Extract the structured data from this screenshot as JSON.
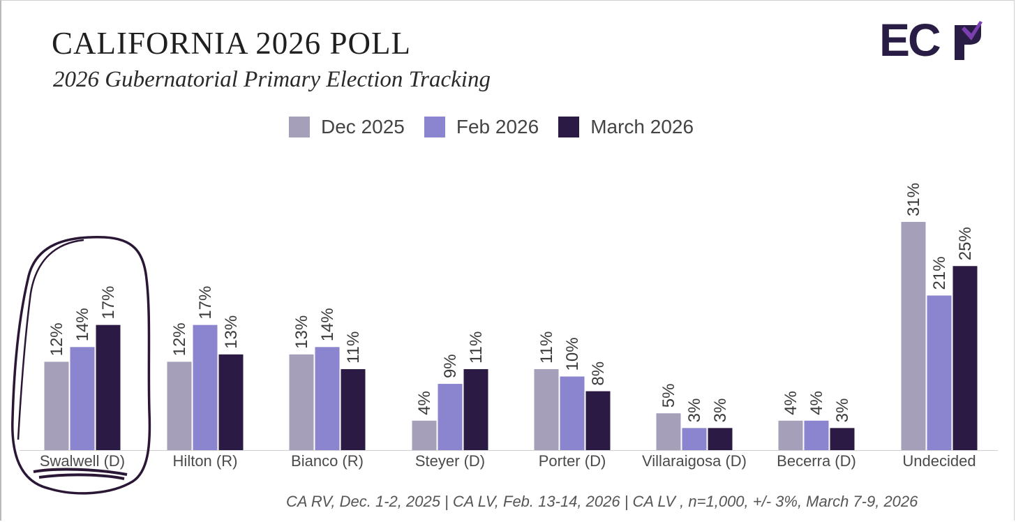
{
  "title": "CALIFORNIA 2026 POLL",
  "subtitle": "2026 Gubernatorial Primary Election Tracking",
  "logo": {
    "text": "EC",
    "mark_icon": "check-arrow-icon"
  },
  "legend": [
    {
      "label": "Dec 2025",
      "color": "#a59fba"
    },
    {
      "label": "Feb 2026",
      "color": "#8b85d0"
    },
    {
      "label": "March 2026",
      "color": "#2b1b44"
    }
  ],
  "chart_data": {
    "type": "bar",
    "title": "CALIFORNIA 2026 POLL",
    "subtitle": "2026 Gubernatorial Primary Election Tracking",
    "xlabel": "",
    "ylabel": "",
    "ylim": [
      0,
      32
    ],
    "grid": false,
    "legend_position": "top-center",
    "value_suffix": "%",
    "categories": [
      "Swalwell (D)",
      "Hilton (R)",
      "Bianco (R)",
      "Steyer (D)",
      "Porter (D)",
      "Villaraigosa (D)",
      "Becerra (D)",
      "Undecided"
    ],
    "series": [
      {
        "name": "Dec 2025",
        "color": "#a59fba",
        "values": [
          12,
          12,
          13,
          4,
          11,
          5,
          4,
          31
        ]
      },
      {
        "name": "Feb 2026",
        "color": "#8b85d0",
        "values": [
          14,
          17,
          14,
          9,
          10,
          3,
          4,
          21
        ]
      },
      {
        "name": "March 2026",
        "color": "#2b1b44",
        "values": [
          17,
          13,
          11,
          11,
          8,
          3,
          3,
          25
        ]
      }
    ],
    "highlighted_category": "Swalwell (D)"
  },
  "footnote": "CA RV, Dec. 1-2, 2025 | CA LV, Feb. 13-14, 2026 | CA LV , n=1,000, +/- 3%, March 7-9, 2026"
}
